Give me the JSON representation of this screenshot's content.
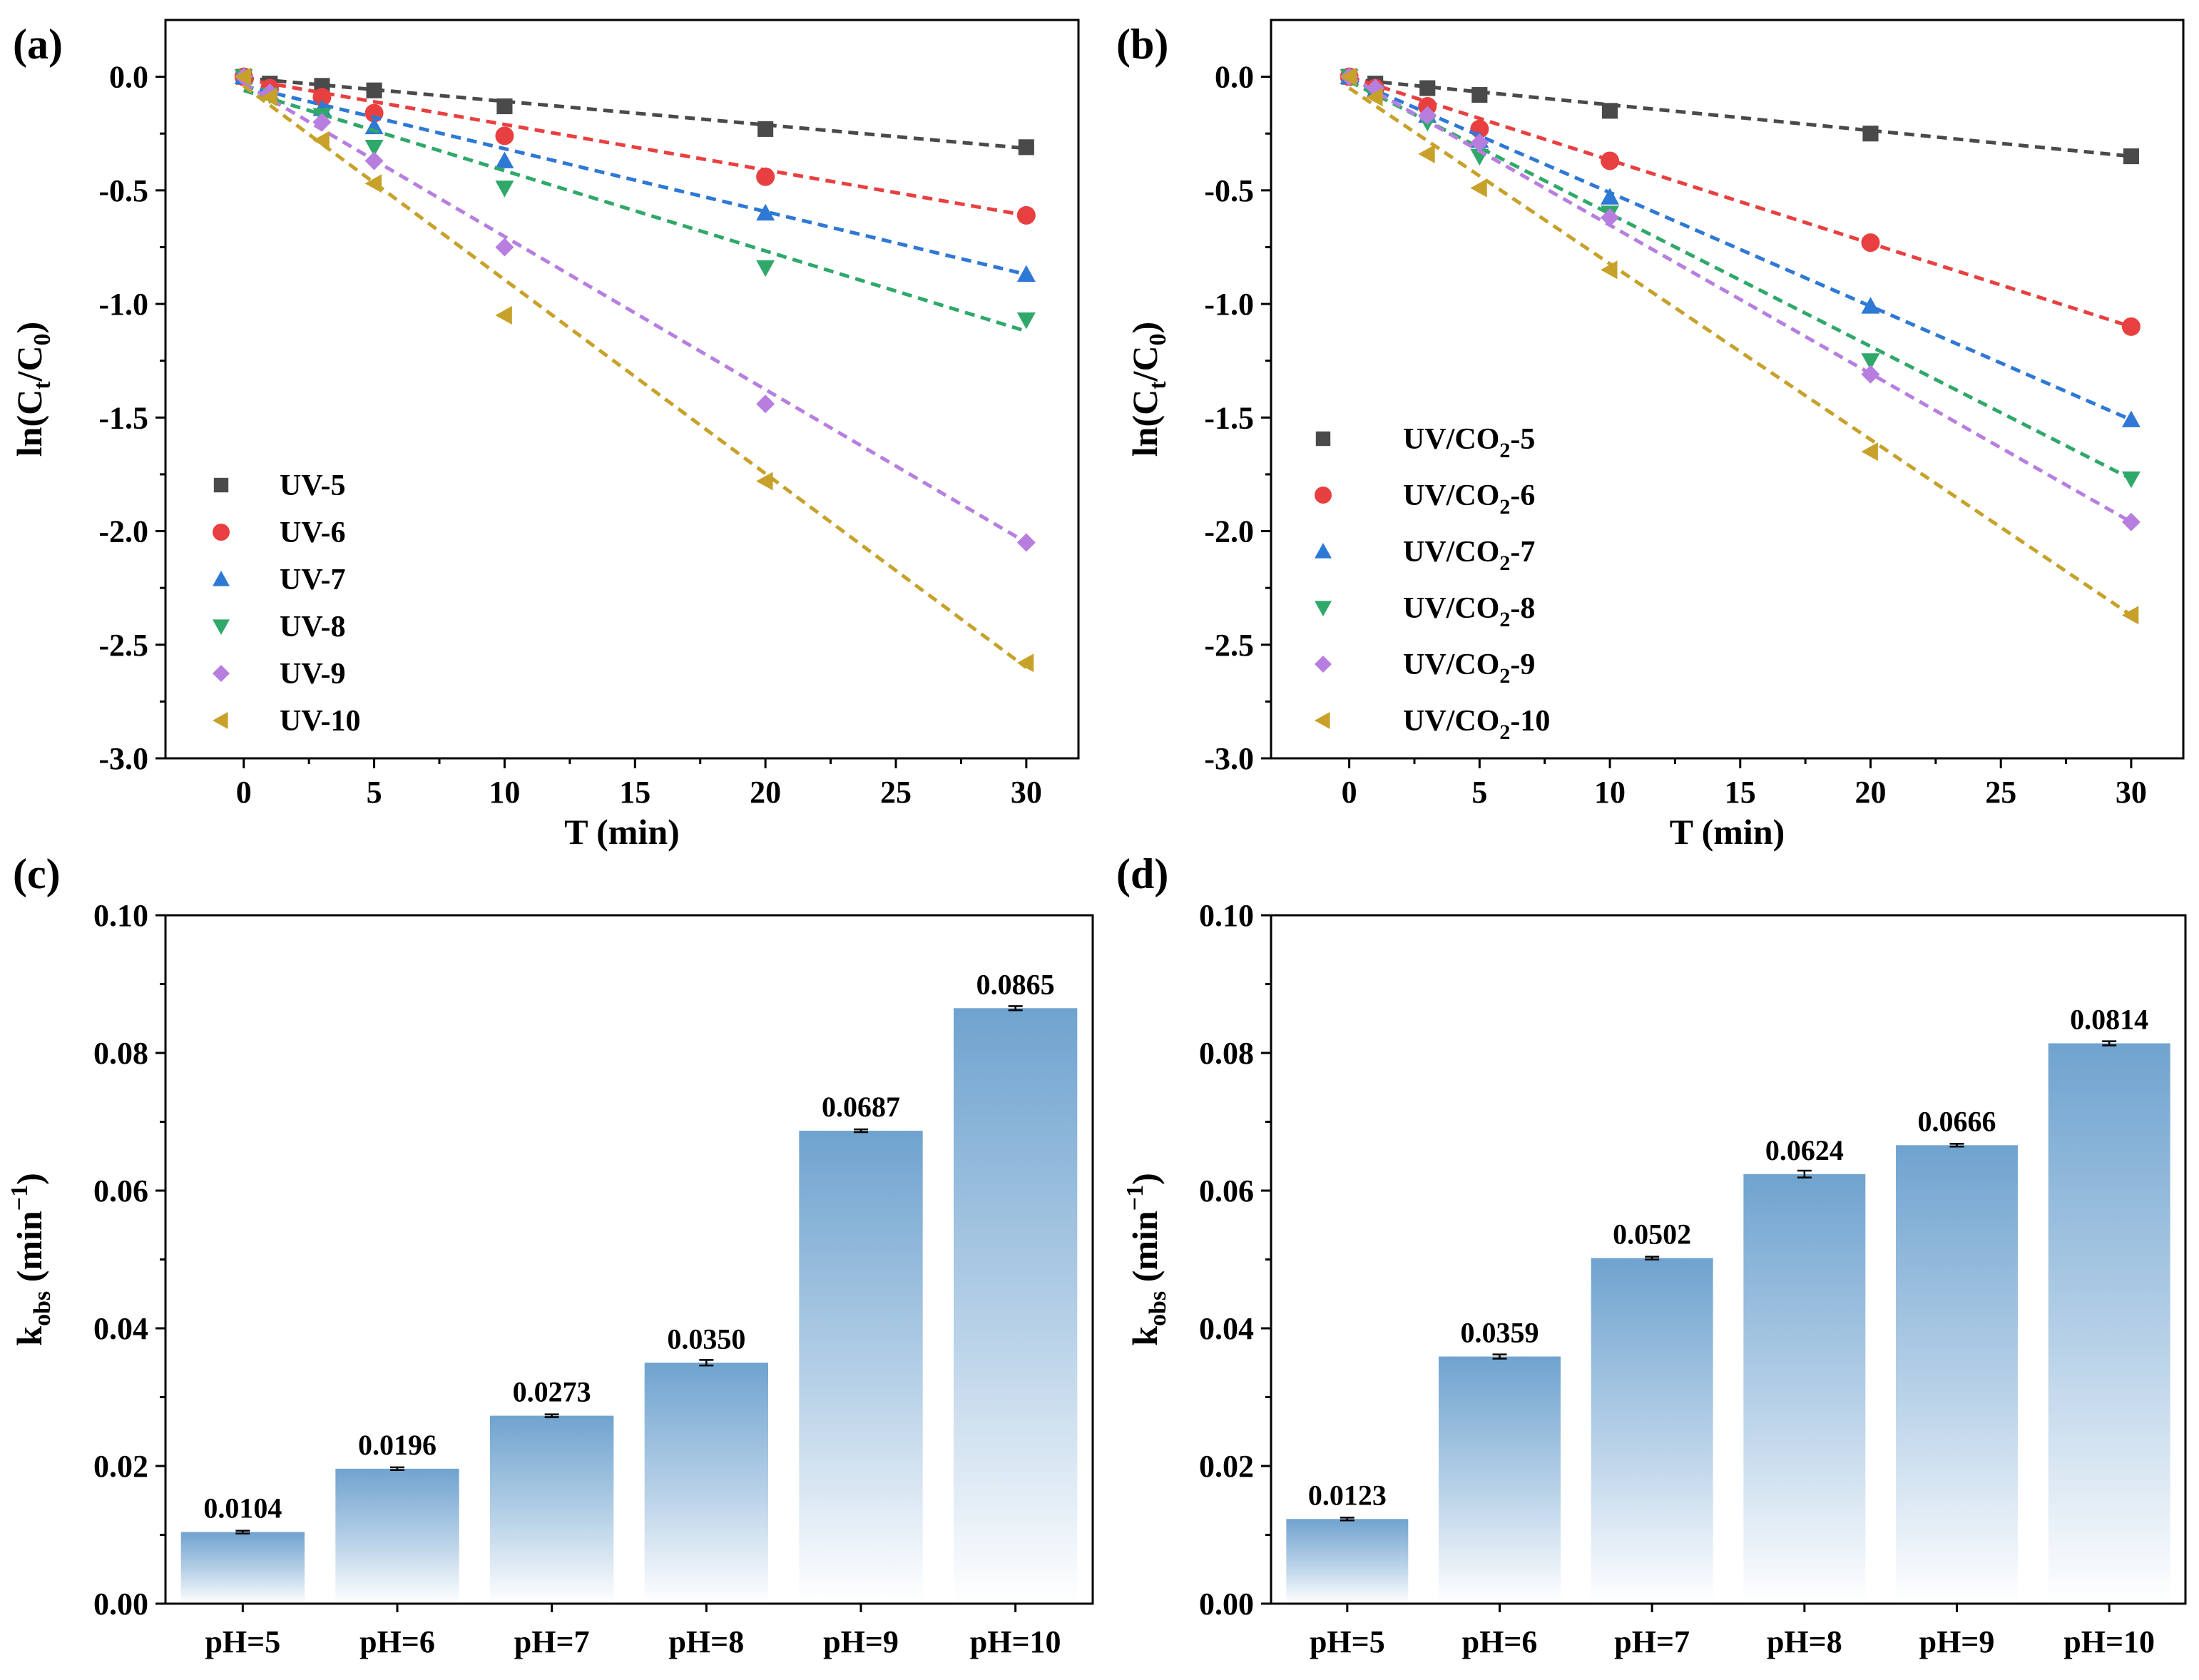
{
  "chart_data": [
    {
      "panel": "(a)",
      "type": "scatter",
      "xlabel": "T (min)",
      "ylabel": "ln(Ct/C0)",
      "ylabel_parts": [
        "ln(C",
        "t",
        "/C",
        "0",
        ")"
      ],
      "xlim": [
        -3,
        32
      ],
      "ylim": [
        -3.0,
        0.25
      ],
      "x_ticks": [
        0,
        5,
        10,
        15,
        20,
        25,
        30
      ],
      "x_tick_labels": [
        "0",
        "5",
        "10",
        "15",
        "20",
        "25",
        "30"
      ],
      "y_ticks": [
        0.0,
        -0.5,
        -1.0,
        -1.5,
        -2.0,
        -2.5,
        -3.0
      ],
      "y_tick_labels": [
        "0.0",
        "-0.5",
        "-1.0",
        "-1.5",
        "-2.0",
        "-2.5",
        "-3.0"
      ],
      "legend_position": "lower-left",
      "x": [
        0,
        1,
        3,
        5,
        10,
        20,
        30
      ],
      "series": [
        {
          "name": "UV-5",
          "label_parts": [
            "UV-5"
          ],
          "color": "#4a4a4a",
          "marker": "square",
          "values": [
            0,
            -0.03,
            -0.04,
            -0.06,
            -0.13,
            -0.23,
            -0.31
          ],
          "fit": [
            -0.005,
            -0.315
          ]
        },
        {
          "name": "UV-6",
          "label_parts": [
            "UV-6"
          ],
          "color": "#e84040",
          "marker": "circle",
          "values": [
            0,
            -0.05,
            -0.09,
            -0.16,
            -0.26,
            -0.44,
            -0.61
          ],
          "fit": [
            -0.01,
            -0.61
          ]
        },
        {
          "name": "UV-7",
          "label_parts": [
            "UV-7"
          ],
          "color": "#2e78d6",
          "marker": "triangle-up",
          "values": [
            0,
            -0.07,
            -0.14,
            -0.22,
            -0.37,
            -0.6,
            -0.87
          ],
          "fit": [
            -0.04,
            -0.87
          ]
        },
        {
          "name": "UV-8",
          "label_parts": [
            "UV-8"
          ],
          "color": "#2fa86a",
          "marker": "triangle-down",
          "values": [
            0,
            -0.08,
            -0.17,
            -0.31,
            -0.49,
            -0.84,
            -1.07
          ],
          "fit": [
            -0.06,
            -1.12
          ]
        },
        {
          "name": "UV-9",
          "label_parts": [
            "UV-9"
          ],
          "color": "#b77ee0",
          "marker": "diamond",
          "values": [
            0,
            -0.07,
            -0.2,
            -0.37,
            -0.75,
            -1.44,
            -2.05
          ],
          "fit": [
            -0.03,
            -2.05
          ]
        },
        {
          "name": "UV-10",
          "label_parts": [
            "UV-10"
          ],
          "color": "#c7a12a",
          "marker": "triangle-left",
          "values": [
            0,
            -0.09,
            -0.28,
            -0.47,
            -1.05,
            -1.78,
            -2.58
          ],
          "fit": [
            -0.04,
            -2.6
          ]
        }
      ]
    },
    {
      "panel": "(b)",
      "type": "scatter",
      "xlabel": "T (min)",
      "ylabel": "ln(Ct/C0)",
      "ylabel_parts": [
        "ln(C",
        "t",
        "/C",
        "0",
        ")"
      ],
      "xlim": [
        -3,
        32
      ],
      "ylim": [
        -3.0,
        0.25
      ],
      "x_ticks": [
        0,
        5,
        10,
        15,
        20,
        25,
        30
      ],
      "x_tick_labels": [
        "0",
        "5",
        "10",
        "15",
        "20",
        "25",
        "30"
      ],
      "y_ticks": [
        0.0,
        -0.5,
        -1.0,
        -1.5,
        -2.0,
        -2.5,
        -3.0
      ],
      "y_tick_labels": [
        "0.0",
        "-0.5",
        "-1.0",
        "-1.5",
        "-2.0",
        "-2.5",
        "-3.0"
      ],
      "legend_position": "lower-left",
      "x": [
        0,
        1,
        3,
        5,
        10,
        20,
        30
      ],
      "series": [
        {
          "name": "UV/CO2-5",
          "label_parts": [
            "UV/CO",
            "2",
            "-5"
          ],
          "color": "#4a4a4a",
          "marker": "square",
          "values": [
            0,
            -0.03,
            -0.05,
            -0.08,
            -0.15,
            -0.25,
            -0.35
          ],
          "fit": [
            -0.01,
            -0.35
          ]
        },
        {
          "name": "UV/CO2-6",
          "label_parts": [
            "UV/CO",
            "2",
            "-6"
          ],
          "color": "#e84040",
          "marker": "circle",
          "values": [
            0,
            -0.05,
            -0.13,
            -0.23,
            -0.37,
            -0.73,
            -1.1
          ],
          "fit": [
            0.0,
            -1.1
          ]
        },
        {
          "name": "UV/CO2-7",
          "label_parts": [
            "UV/CO",
            "2",
            "-7"
          ],
          "color": "#2e78d6",
          "marker": "triangle-up",
          "values": [
            0,
            -0.06,
            -0.17,
            -0.28,
            -0.53,
            -1.01,
            -1.51
          ],
          "fit": [
            -0.01,
            -1.51
          ]
        },
        {
          "name": "UV/CO2-8",
          "label_parts": [
            "UV/CO",
            "2",
            "-8"
          ],
          "color": "#2fa86a",
          "marker": "triangle-down",
          "values": [
            0,
            -0.07,
            -0.2,
            -0.35,
            -0.6,
            -1.25,
            -1.77
          ],
          "fit": [
            -0.02,
            -1.77
          ]
        },
        {
          "name": "UV/CO2-9",
          "label_parts": [
            "UV/CO",
            "2",
            "-9"
          ],
          "color": "#b77ee0",
          "marker": "diamond",
          "values": [
            0,
            -0.05,
            -0.17,
            -0.29,
            -0.62,
            -1.31,
            -1.96
          ],
          "fit": [
            0.0,
            -1.96
          ]
        },
        {
          "name": "UV/CO2-10",
          "label_parts": [
            "UV/CO",
            "2",
            "-10"
          ],
          "color": "#c7a12a",
          "marker": "triangle-left",
          "values": [
            0,
            -0.09,
            -0.34,
            -0.49,
            -0.85,
            -1.65,
            -2.37
          ],
          "fit": [
            -0.05,
            -2.37
          ]
        }
      ]
    },
    {
      "panel": "(c)",
      "type": "bar",
      "ylabel": "kobs (min−1)",
      "ylabel_parts": [
        "k",
        "obs",
        " (min",
        "−1",
        ")"
      ],
      "ylim": [
        0,
        0.1
      ],
      "y_ticks": [
        0.0,
        0.02,
        0.04,
        0.06,
        0.08,
        0.1
      ],
      "y_tick_labels": [
        "0.00",
        "0.02",
        "0.04",
        "0.06",
        "0.08",
        "0.10"
      ],
      "categories": [
        "pH=5",
        "pH=6",
        "pH=7",
        "pH=8",
        "pH=9",
        "pH=10"
      ],
      "values": [
        0.0104,
        0.0196,
        0.0273,
        0.035,
        0.0687,
        0.0865
      ],
      "value_labels": [
        "0.0104",
        "0.0196",
        "0.0273",
        "0.0350",
        "0.0687",
        "0.0865"
      ],
      "errors": [
        0.0002,
        0.0002,
        0.0002,
        0.0004,
        0.0002,
        0.0003
      ],
      "bar_color": "#7aaad3"
    },
    {
      "panel": "(d)",
      "type": "bar",
      "ylabel": "kobs (min−1)",
      "ylabel_parts": [
        "k",
        "obs",
        " (min",
        "−1",
        ")"
      ],
      "ylim": [
        0,
        0.1
      ],
      "y_ticks": [
        0.0,
        0.02,
        0.04,
        0.06,
        0.08,
        0.1
      ],
      "y_tick_labels": [
        "0.00",
        "0.02",
        "0.04",
        "0.06",
        "0.08",
        "0.10"
      ],
      "categories": [
        "pH=5",
        "pH=6",
        "pH=7",
        "pH=8",
        "pH=9",
        "pH=10"
      ],
      "values": [
        0.0123,
        0.0359,
        0.0502,
        0.0624,
        0.0666,
        0.0814
      ],
      "value_labels": [
        "0.0123",
        "0.0359",
        "0.0502",
        "0.0624",
        "0.0666",
        "0.0814"
      ],
      "errors": [
        0.0002,
        0.0003,
        0.0002,
        0.0005,
        0.0002,
        0.0003
      ],
      "bar_color": "#7aaad3"
    }
  ]
}
